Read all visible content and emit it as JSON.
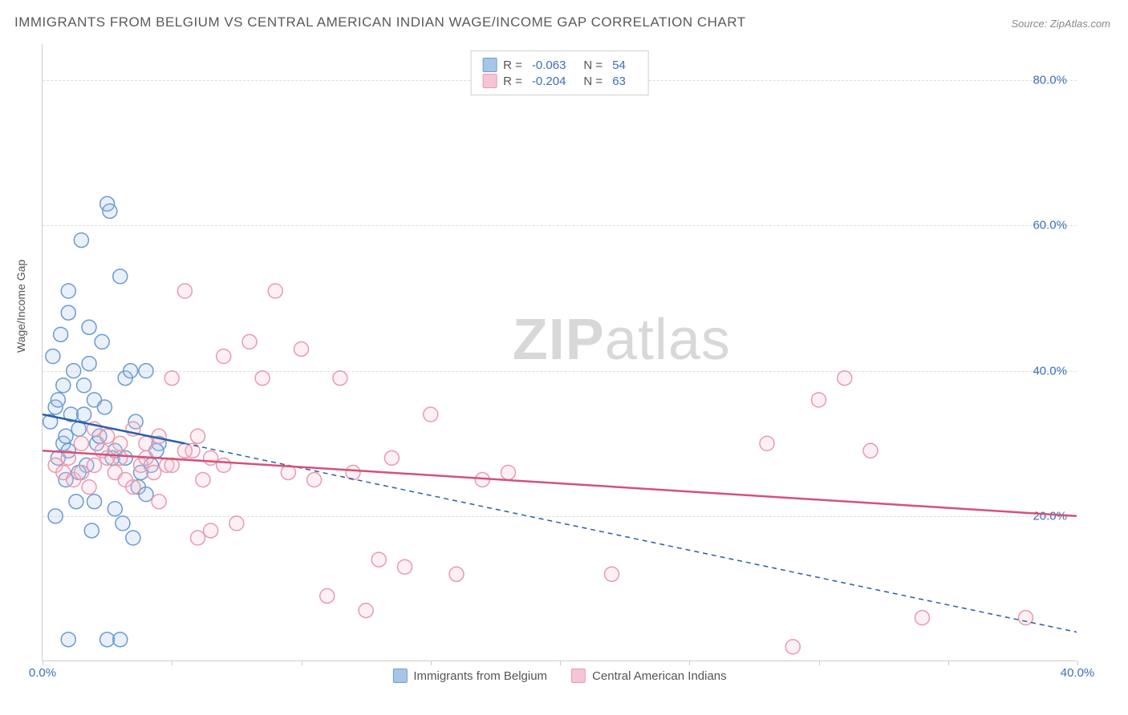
{
  "title": "IMMIGRANTS FROM BELGIUM VS CENTRAL AMERICAN INDIAN WAGE/INCOME GAP CORRELATION CHART",
  "source": "Source: ZipAtlas.com",
  "watermark_bold": "ZIP",
  "watermark_rest": "atlas",
  "y_axis_label": "Wage/Income Gap",
  "chart": {
    "type": "scatter",
    "xlim": [
      0,
      40
    ],
    "ylim": [
      0,
      85
    ],
    "x_ticks": [
      0,
      5,
      10,
      15,
      20,
      25,
      30,
      35,
      40
    ],
    "x_tick_labels": {
      "0": "0.0%",
      "40": "40.0%"
    },
    "y_ticks": [
      20,
      40,
      60,
      80
    ],
    "y_tick_labels": {
      "20": "20.0%",
      "40": "40.0%",
      "60": "60.0%",
      "80": "80.0%"
    },
    "grid_color": "#dddddd",
    "background_color": "#ffffff",
    "marker_radius": 9,
    "marker_stroke_width": 1.5,
    "marker_fill_opacity": 0.25,
    "series": [
      {
        "name": "Immigrants from Belgium",
        "color_stroke": "#6b9bd1",
        "color_fill": "#a8c5e8",
        "R": "-0.063",
        "N": "54",
        "trend": {
          "x1": 0,
          "y1": 34,
          "x2": 5.5,
          "y2": 30,
          "dash_x2": 40,
          "dash_y2": 4,
          "color": "#2b5fa8",
          "width": 2.5
        },
        "points": [
          [
            0.3,
            33
          ],
          [
            0.5,
            35
          ],
          [
            0.6,
            28
          ],
          [
            0.7,
            45
          ],
          [
            0.8,
            30
          ],
          [
            0.9,
            25
          ],
          [
            1.0,
            51
          ],
          [
            1.1,
            34
          ],
          [
            1.2,
            40
          ],
          [
            1.3,
            22
          ],
          [
            1.4,
            32
          ],
          [
            1.5,
            58
          ],
          [
            1.6,
            38
          ],
          [
            1.7,
            27
          ],
          [
            1.8,
            41
          ],
          [
            1.9,
            18
          ],
          [
            2.0,
            36
          ],
          [
            2.1,
            30
          ],
          [
            2.3,
            44
          ],
          [
            2.5,
            63
          ],
          [
            2.6,
            62
          ],
          [
            2.7,
            28
          ],
          [
            2.8,
            29
          ],
          [
            3.0,
            53
          ],
          [
            3.1,
            19
          ],
          [
            3.2,
            39
          ],
          [
            3.4,
            40
          ],
          [
            3.5,
            17
          ],
          [
            3.7,
            24
          ],
          [
            1.0,
            3
          ],
          [
            4.0,
            40
          ],
          [
            4.2,
            27
          ],
          [
            4.5,
            30
          ],
          [
            0.4,
            42
          ],
          [
            0.6,
            36
          ],
          [
            0.8,
            38
          ],
          [
            1.0,
            29
          ],
          [
            2.5,
            3
          ],
          [
            1.4,
            26
          ],
          [
            1.6,
            34
          ],
          [
            3.0,
            3
          ],
          [
            2.0,
            22
          ],
          [
            2.2,
            31
          ],
          [
            2.4,
            35
          ],
          [
            2.8,
            21
          ],
          [
            3.2,
            28
          ],
          [
            3.6,
            33
          ],
          [
            3.8,
            26
          ],
          [
            4.0,
            23
          ],
          [
            4.4,
            29
          ],
          [
            1.0,
            48
          ],
          [
            1.8,
            46
          ],
          [
            0.5,
            20
          ],
          [
            0.9,
            31
          ]
        ]
      },
      {
        "name": "Central American Indians",
        "color_stroke": "#e89ab0",
        "color_fill": "#f5c5d3",
        "R": "-0.204",
        "N": "63",
        "trend": {
          "x1": 0,
          "y1": 29,
          "x2": 40,
          "y2": 20,
          "color": "#d6517a",
          "width": 2.5
        },
        "points": [
          [
            0.5,
            27
          ],
          [
            0.8,
            26
          ],
          [
            1.0,
            28
          ],
          [
            1.2,
            25
          ],
          [
            1.5,
            30
          ],
          [
            1.8,
            24
          ],
          [
            2.0,
            27
          ],
          [
            2.3,
            29
          ],
          [
            2.5,
            31
          ],
          [
            2.8,
            26
          ],
          [
            3.0,
            28
          ],
          [
            3.2,
            25
          ],
          [
            3.5,
            24
          ],
          [
            3.8,
            27
          ],
          [
            4.0,
            30
          ],
          [
            4.3,
            26
          ],
          [
            4.5,
            22
          ],
          [
            4.8,
            27
          ],
          [
            5.0,
            39
          ],
          [
            5.5,
            51
          ],
          [
            5.8,
            29
          ],
          [
            6.0,
            17
          ],
          [
            6.2,
            25
          ],
          [
            6.5,
            28
          ],
          [
            7.0,
            42
          ],
          [
            7.5,
            19
          ],
          [
            8.0,
            44
          ],
          [
            8.5,
            39
          ],
          [
            9.0,
            51
          ],
          [
            9.5,
            26
          ],
          [
            10.0,
            43
          ],
          [
            10.5,
            25
          ],
          [
            11.0,
            9
          ],
          [
            11.5,
            39
          ],
          [
            12.0,
            26
          ],
          [
            12.5,
            7
          ],
          [
            13.0,
            14
          ],
          [
            13.5,
            28
          ],
          [
            14.0,
            13
          ],
          [
            15.0,
            34
          ],
          [
            16.0,
            12
          ],
          [
            17.0,
            25
          ],
          [
            18.0,
            26
          ],
          [
            22.0,
            12
          ],
          [
            28.0,
            30
          ],
          [
            29.0,
            2
          ],
          [
            30.0,
            36
          ],
          [
            31.0,
            39
          ],
          [
            32.0,
            29
          ],
          [
            34.0,
            6
          ],
          [
            38.0,
            6
          ],
          [
            1.5,
            26
          ],
          [
            2.0,
            32
          ],
          [
            2.5,
            28
          ],
          [
            3.0,
            30
          ],
          [
            3.5,
            32
          ],
          [
            4.0,
            28
          ],
          [
            4.5,
            31
          ],
          [
            5.0,
            27
          ],
          [
            5.5,
            29
          ],
          [
            6.0,
            31
          ],
          [
            6.5,
            18
          ],
          [
            7.0,
            27
          ]
        ]
      }
    ]
  },
  "legend_top": {
    "r_label": "R =",
    "n_label": "N ="
  },
  "legend_bottom_labels": [
    "Immigrants from Belgium",
    "Central American Indians"
  ]
}
